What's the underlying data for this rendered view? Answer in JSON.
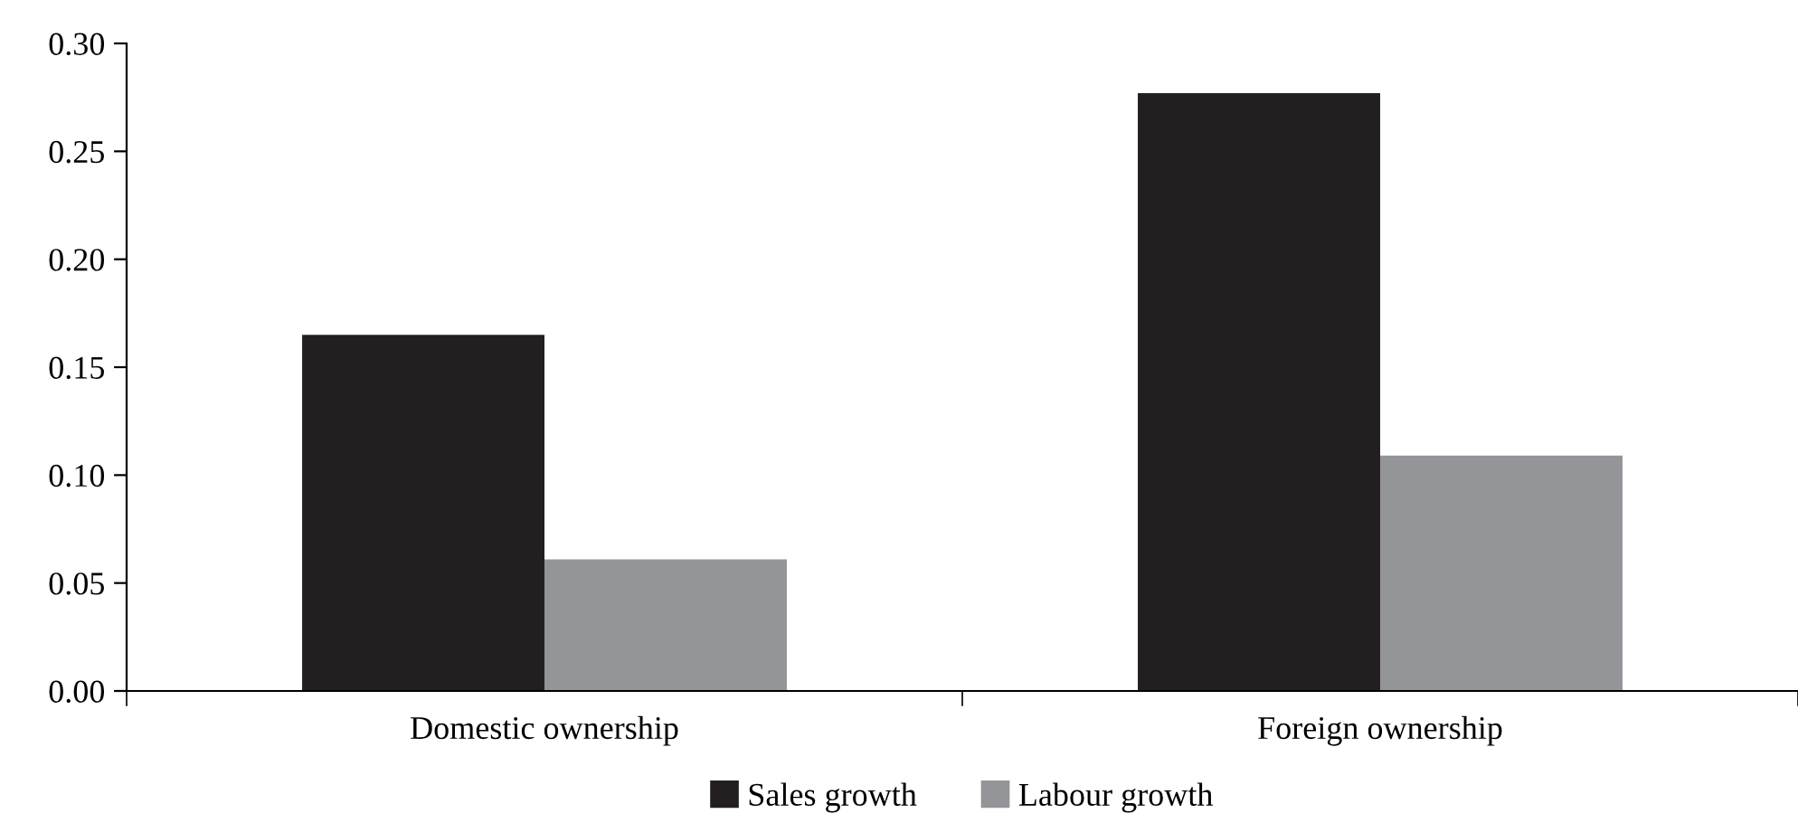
{
  "chart_data": {
    "type": "bar",
    "categories": [
      "Domestic ownership",
      "Foreign ownership"
    ],
    "series": [
      {
        "name": "Sales growth",
        "color": "#231f20",
        "values": [
          0.165,
          0.277
        ]
      },
      {
        "name": "Labour growth",
        "color": "#939598",
        "values": [
          0.061,
          0.109
        ]
      }
    ],
    "ylim": [
      0,
      0.3
    ],
    "yticks": [
      {
        "value": 0,
        "label": "0.00"
      },
      {
        "value": 0.05,
        "label": "0.05"
      },
      {
        "value": 0.1,
        "label": "0.10"
      },
      {
        "value": 0.15,
        "label": "0.15"
      },
      {
        "value": 0.2,
        "label": "0.20"
      },
      {
        "value": 0.25,
        "label": "0.25"
      },
      {
        "value": 0.3,
        "label": "0.30"
      }
    ],
    "grid": false,
    "legend": "bottom"
  }
}
